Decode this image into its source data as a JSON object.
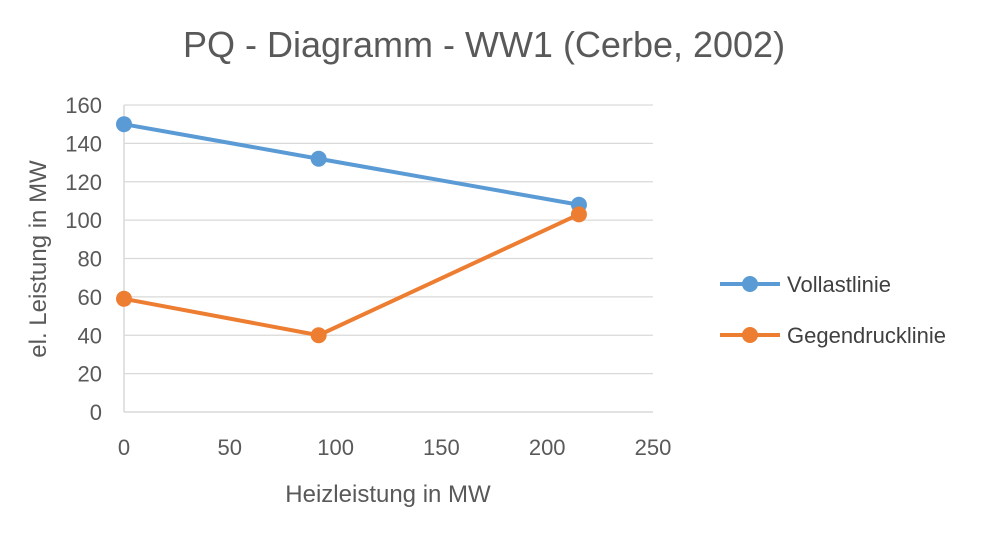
{
  "chart_data": {
    "type": "line",
    "title": "PQ - Diagramm - WW1 (Cerbe, 2002)",
    "xlabel": "Heizleistung in MW",
    "ylabel": "el. Leistung in MW",
    "xlim": [
      0,
      250
    ],
    "ylim": [
      0,
      160
    ],
    "x_ticks": [
      0,
      50,
      100,
      150,
      200,
      250
    ],
    "y_ticks": [
      0,
      20,
      40,
      60,
      80,
      100,
      120,
      140,
      160
    ],
    "grid": "horizontal",
    "legend_position": "right",
    "series": [
      {
        "name": "Vollastlinie",
        "color": "#5B9BD5",
        "points": [
          [
            0,
            150
          ],
          [
            92,
            132
          ],
          [
            215,
            108
          ]
        ]
      },
      {
        "name": "Gegendrucklinie",
        "color": "#ED7D31",
        "points": [
          [
            0,
            59
          ],
          [
            92,
            40
          ],
          [
            215,
            103
          ]
        ]
      }
    ]
  }
}
